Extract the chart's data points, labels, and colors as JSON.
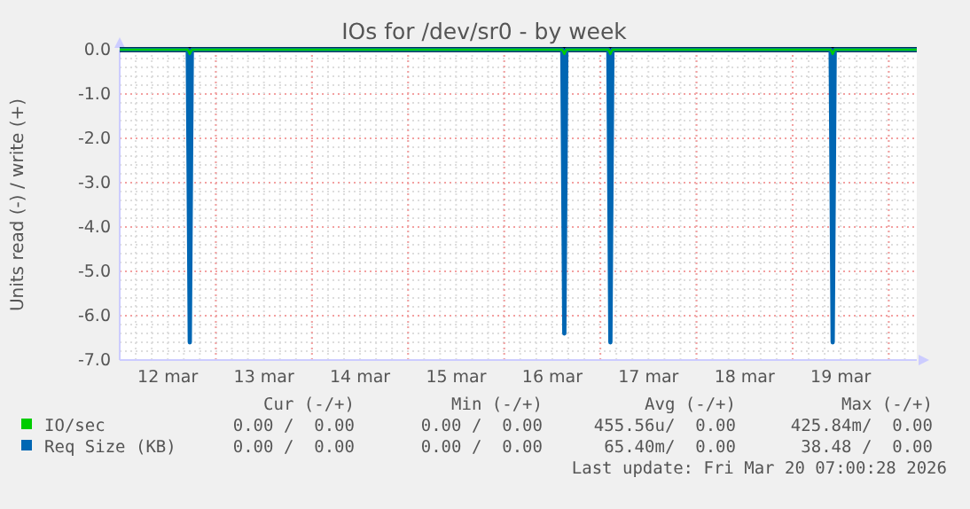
{
  "chart_data": {
    "type": "line",
    "title": "IOs for /dev/sr0 - by week",
    "ylabel": "Units read (-) / write (+)",
    "xlim": [
      "2026-03-12T00:00",
      "2026-03-20T07:00"
    ],
    "xticks": [
      {
        "value": "2026-03-12T12:00",
        "label": "12 mar"
      },
      {
        "value": "2026-03-13T12:00",
        "label": "13 mar"
      },
      {
        "value": "2026-03-14T12:00",
        "label": "14 mar"
      },
      {
        "value": "2026-03-15T12:00",
        "label": "15 mar"
      },
      {
        "value": "2026-03-16T12:00",
        "label": "16 mar"
      },
      {
        "value": "2026-03-17T12:00",
        "label": "17 mar"
      },
      {
        "value": "2026-03-18T12:00",
        "label": "18 mar"
      },
      {
        "value": "2026-03-19T12:00",
        "label": "19 mar"
      },
      {
        "value": "2026-03-13T00:00",
        "label": null
      },
      {
        "value": "2026-03-14T00:00",
        "label": null
      },
      {
        "value": "2026-03-15T00:00",
        "label": null
      },
      {
        "value": "2026-03-16T00:00",
        "label": null
      },
      {
        "value": "2026-03-17T00:00",
        "label": null
      },
      {
        "value": "2026-03-18T00:00",
        "label": null
      },
      {
        "value": "2026-03-19T00:00",
        "label": null
      },
      {
        "value": "2026-03-20T00:00",
        "label": null
      }
    ],
    "ylim": [
      -7,
      0
    ],
    "yticks": [
      {
        "value": 0,
        "label": "0.0"
      },
      {
        "value": -1,
        "label": "-1.0"
      },
      {
        "value": -2,
        "label": "-2.0"
      },
      {
        "value": -3,
        "label": "-3.0"
      },
      {
        "value": -4,
        "label": "-4.0"
      },
      {
        "value": -5,
        "label": "-5.0"
      },
      {
        "value": -6,
        "label": "-6.0"
      },
      {
        "value": -7,
        "label": "-7.0"
      }
    ],
    "grid": true,
    "legend": "bottom",
    "marker": "none",
    "line_style": "solid",
    "ref_lines": [
      {
        "axis": "y",
        "value": 0,
        "color": "#000000"
      }
    ],
    "series": [
      {
        "name": "IO/sec",
        "color": "#00cc00",
        "x": [
          "2026-03-12T00:00",
          "2026-03-12T17:00",
          "2026-03-12T17:30",
          "2026-03-12T18:00",
          "2026-03-16T14:30",
          "2026-03-16T15:00",
          "2026-03-16T15:30",
          "2026-03-17T02:00",
          "2026-03-17T02:30",
          "2026-03-17T03:00",
          "2026-03-19T09:30",
          "2026-03-19T10:00",
          "2026-03-19T10:30",
          "2026-03-20T07:00"
        ],
        "values": [
          0,
          0,
          -0.1,
          0,
          0,
          -0.1,
          0,
          0,
          -0.1,
          0,
          0,
          -0.1,
          0,
          0
        ]
      },
      {
        "name": "Req Size (KB)",
        "color": "#0066b3",
        "x": [
          "2026-03-12T00:00",
          "2026-03-12T17:00",
          "2026-03-12T17:30",
          "2026-03-12T18:00",
          "2026-03-16T14:30",
          "2026-03-16T15:00",
          "2026-03-16T15:30",
          "2026-03-17T02:00",
          "2026-03-17T02:30",
          "2026-03-17T03:00",
          "2026-03-19T09:30",
          "2026-03-19T10:00",
          "2026-03-19T10:30",
          "2026-03-20T07:00"
        ],
        "values": [
          0,
          0,
          -6.6,
          0,
          0,
          -6.4,
          0,
          0,
          -6.6,
          0,
          0,
          -6.6,
          0,
          0
        ]
      }
    ],
    "annotations": [
      "Cur (-/+)",
      "Min (-/+)",
      "Avg (-/+)",
      "Max (-/+)",
      "0.00 /  0.00",
      "0.00 /  0.00",
      "455.56u/  0.00",
      "425.84m/  0.00",
      "0.00 /  0.00",
      "0.00 /  0.00",
      "65.40m/  0.00",
      "38.48 /  0.00",
      "Last update: Fri Mar 20 07:00:28 2026"
    ]
  }
}
